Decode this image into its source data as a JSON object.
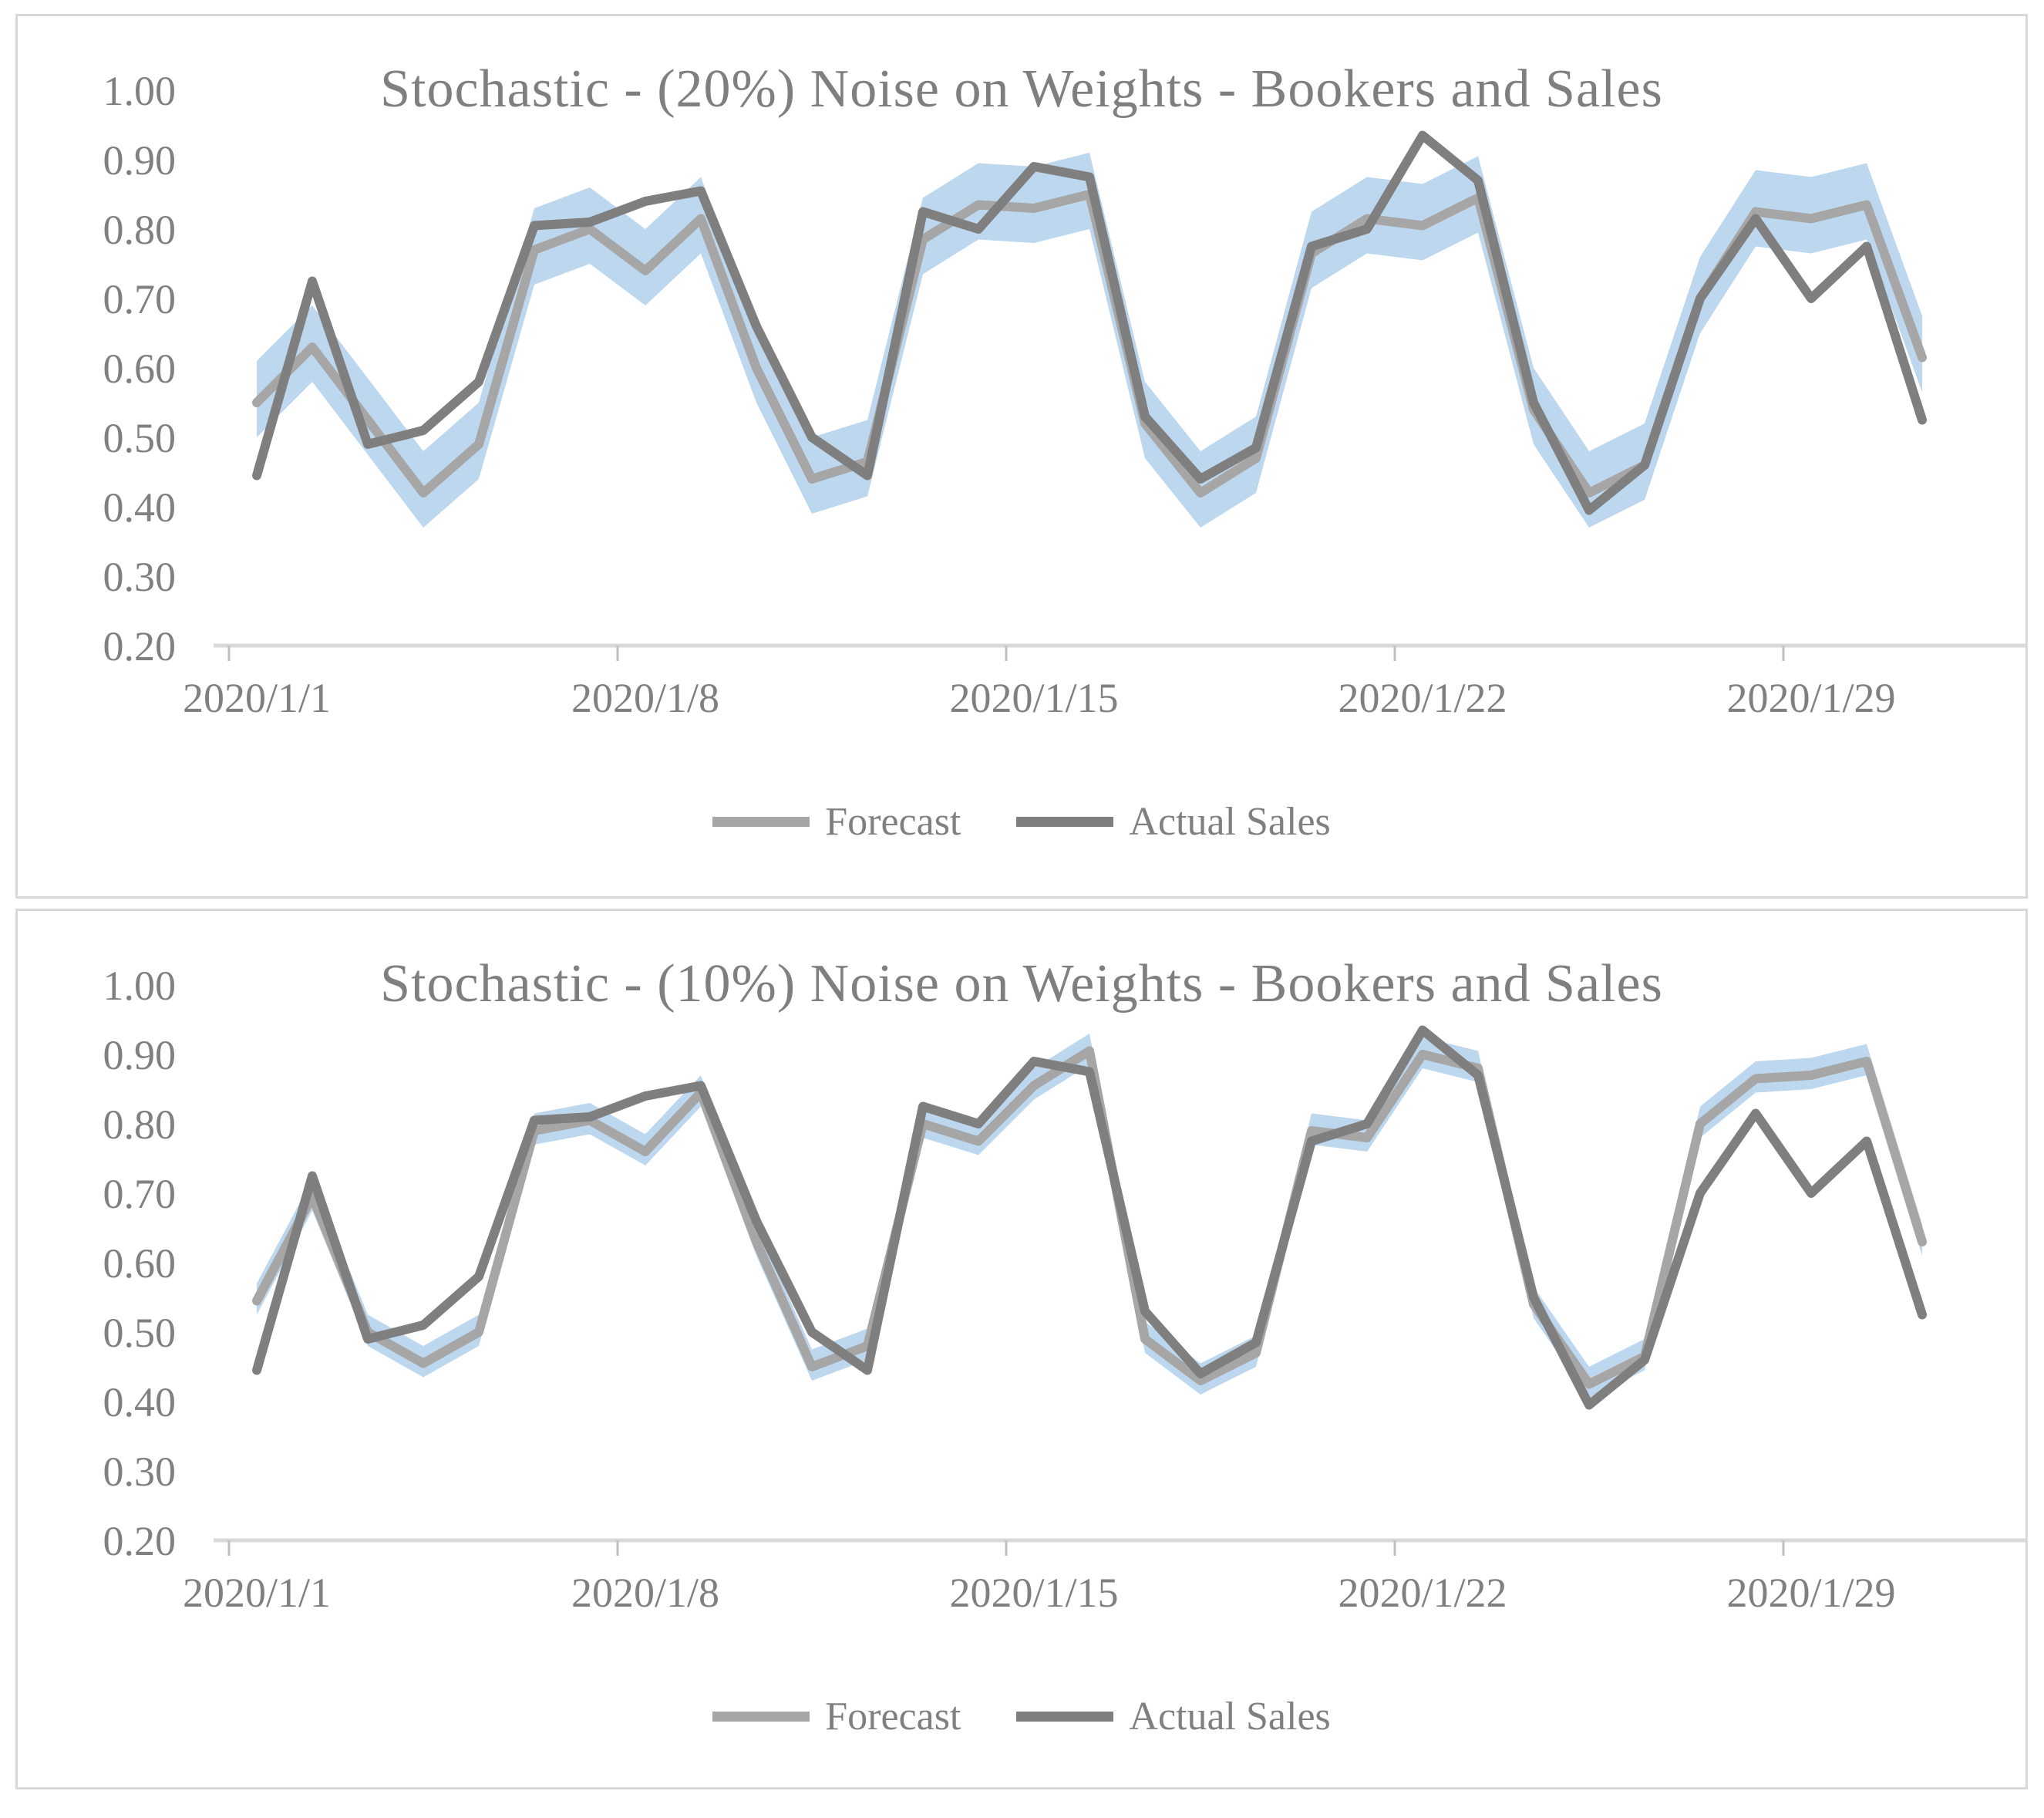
{
  "page": {
    "background": "#ffffff",
    "panel_border_color": "#d9d9d9"
  },
  "colors": {
    "axis_line": "#d9d9d9",
    "tick_mark": "#bfbfbf",
    "label_text": "#808080",
    "title_text": "#7f7f7f",
    "band_blue": "#bdd7ee",
    "forecast_gray": "#a6a6a6",
    "actual_gray": "#7f7f7f"
  },
  "chart_data": [
    {
      "type": "line",
      "title": "Stochastic - (20%) Noise on Weights - Bookers and Sales",
      "x_start_date": "2020/1/1",
      "n_points": 31,
      "x_tick_labels": [
        "2020/1/1",
        "2020/1/8",
        "2020/1/15",
        "2020/1/22",
        "2020/1/29"
      ],
      "x_tick_day_indices": [
        0,
        7,
        14,
        21,
        28
      ],
      "ylim": [
        0.2,
        1.0
      ],
      "y_ticks": [
        "1.00",
        "0.90",
        "0.80",
        "0.70",
        "0.60",
        "0.50",
        "0.40",
        "0.30",
        "0.20"
      ],
      "grid": false,
      "legend_position": "bottom-center",
      "band": {
        "label": "forecast-uncertainty-band",
        "color": "#bdd7ee",
        "upper_offset": 0.06,
        "lower_offset": 0.05
      },
      "series": [
        {
          "name": "Forecast",
          "color": "#a6a6a6",
          "values": [
            0.55,
            0.63,
            0.525,
            0.42,
            0.49,
            0.77,
            0.8,
            0.74,
            0.815,
            0.6,
            0.44,
            0.465,
            0.785,
            0.835,
            0.83,
            0.85,
            0.52,
            0.42,
            0.47,
            0.765,
            0.815,
            0.805,
            0.845,
            0.54,
            0.42,
            0.46,
            0.7,
            0.825,
            0.815,
            0.835,
            0.615
          ]
        },
        {
          "name": "Actual Sales",
          "color": "#7f7f7f",
          "values": [
            0.445,
            0.725,
            0.49,
            0.51,
            0.58,
            0.805,
            0.81,
            0.84,
            0.855,
            0.66,
            0.5,
            0.445,
            0.825,
            0.8,
            0.89,
            0.875,
            0.53,
            0.44,
            0.485,
            0.775,
            0.8,
            0.935,
            0.87,
            0.55,
            0.395,
            0.46,
            0.7,
            0.815,
            0.7,
            0.775,
            0.525
          ]
        }
      ]
    },
    {
      "type": "line",
      "title": "Stochastic - (10%) Noise on Weights - Bookers and Sales",
      "x_start_date": "2020/1/1",
      "n_points": 31,
      "x_tick_labels": [
        "2020/1/1",
        "2020/1/8",
        "2020/1/15",
        "2020/1/22",
        "2020/1/29"
      ],
      "x_tick_day_indices": [
        0,
        7,
        14,
        21,
        28
      ],
      "ylim": [
        0.2,
        1.0
      ],
      "y_ticks": [
        "1.00",
        "0.90",
        "0.80",
        "0.70",
        "0.60",
        "0.50",
        "0.40",
        "0.30",
        "0.20"
      ],
      "grid": false,
      "legend_position": "bottom-center",
      "band": {
        "label": "forecast-uncertainty-band",
        "color": "#bdd7ee",
        "upper_offset": 0.025,
        "lower_offset": 0.02
      },
      "series": [
        {
          "name": "Forecast",
          "color": "#a6a6a6",
          "values": [
            0.545,
            0.695,
            0.5,
            0.455,
            0.5,
            0.79,
            0.805,
            0.76,
            0.845,
            0.63,
            0.45,
            0.48,
            0.8,
            0.775,
            0.855,
            0.905,
            0.49,
            0.43,
            0.47,
            0.79,
            0.78,
            0.9,
            0.88,
            0.54,
            0.425,
            0.465,
            0.8,
            0.865,
            0.87,
            0.89,
            0.63
          ]
        },
        {
          "name": "Actual Sales",
          "color": "#7f7f7f",
          "values": [
            0.445,
            0.725,
            0.49,
            0.51,
            0.58,
            0.805,
            0.81,
            0.84,
            0.855,
            0.66,
            0.5,
            0.445,
            0.825,
            0.8,
            0.89,
            0.875,
            0.53,
            0.44,
            0.485,
            0.775,
            0.8,
            0.935,
            0.87,
            0.55,
            0.395,
            0.46,
            0.7,
            0.815,
            0.7,
            0.775,
            0.525
          ]
        }
      ]
    }
  ]
}
